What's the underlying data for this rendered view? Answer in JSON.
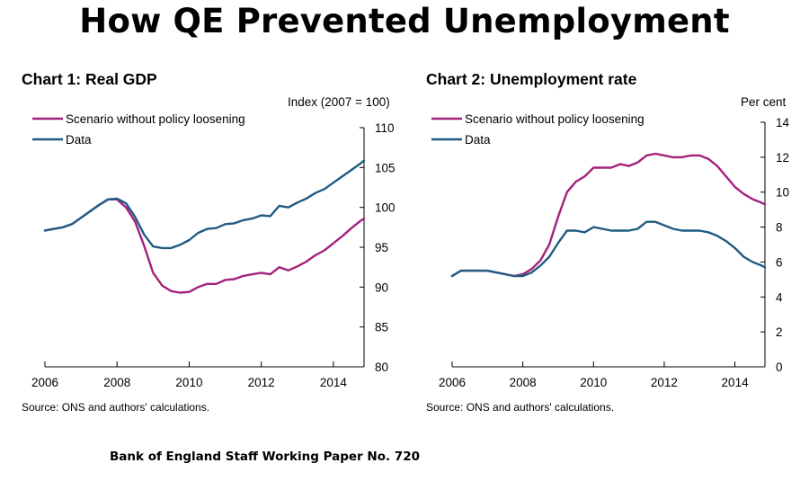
{
  "header": {
    "title": "How QE Prevented Unemployment"
  },
  "footer": {
    "text": "Bank of England Staff Working Paper No. 720"
  },
  "colors": {
    "scenario": "#a3217d",
    "data": "#1f5b82",
    "axis": "#000000"
  },
  "chart_data": [
    {
      "type": "line",
      "title": "Chart 1: Real GDP",
      "ylabel": "Index (2007 = 100)",
      "source": "Source: ONS and authors' calculations.",
      "xlim": [
        2006,
        2014.85
      ],
      "ylim": [
        80,
        110
      ],
      "x_ticks": [
        2006,
        2008,
        2010,
        2012,
        2014
      ],
      "y_ticks": [
        80,
        85,
        90,
        95,
        100,
        105,
        110
      ],
      "y_axis_side": "right",
      "legend": "top-left",
      "series": [
        {
          "name": "Scenario without policy loosening",
          "color_key": "scenario",
          "x": [
            2006,
            2006.25,
            2006.5,
            2006.75,
            2007,
            2007.25,
            2007.5,
            2007.75,
            2008,
            2008.25,
            2008.5,
            2008.75,
            2009,
            2009.25,
            2009.5,
            2009.75,
            2010,
            2010.25,
            2010.5,
            2010.75,
            2011,
            2011.25,
            2011.5,
            2011.75,
            2012,
            2012.25,
            2012.5,
            2012.75,
            2013,
            2013.25,
            2013.5,
            2013.75,
            2014,
            2014.25,
            2014.5,
            2014.75,
            2014.85
          ],
          "y": [
            97.1,
            97.3,
            97.5,
            97.9,
            98.7,
            99.5,
            100.3,
            101.0,
            101.0,
            100.0,
            98.2,
            95.2,
            91.8,
            90.2,
            89.5,
            89.3,
            89.4,
            90.0,
            90.4,
            90.4,
            90.9,
            91.0,
            91.4,
            91.6,
            91.8,
            91.6,
            92.5,
            92.1,
            92.6,
            93.2,
            94.0,
            94.6,
            95.5,
            96.4,
            97.4,
            98.3,
            98.6
          ]
        },
        {
          "name": "Data",
          "color_key": "data",
          "x": [
            2006,
            2006.25,
            2006.5,
            2006.75,
            2007,
            2007.25,
            2007.5,
            2007.75,
            2008,
            2008.25,
            2008.5,
            2008.75,
            2009,
            2009.25,
            2009.5,
            2009.75,
            2010,
            2010.25,
            2010.5,
            2010.75,
            2011,
            2011.25,
            2011.5,
            2011.75,
            2012,
            2012.25,
            2012.5,
            2012.75,
            2013,
            2013.25,
            2013.5,
            2013.75,
            2014,
            2014.25,
            2014.5,
            2014.75,
            2014.85
          ],
          "y": [
            97.1,
            97.3,
            97.5,
            97.9,
            98.7,
            99.5,
            100.3,
            101.0,
            101.1,
            100.5,
            98.8,
            96.6,
            95.1,
            94.9,
            94.9,
            95.3,
            95.9,
            96.8,
            97.3,
            97.4,
            97.9,
            98.0,
            98.4,
            98.6,
            99.0,
            98.9,
            100.2,
            100.0,
            100.6,
            101.1,
            101.8,
            102.3,
            103.1,
            103.9,
            104.7,
            105.5,
            105.9
          ]
        }
      ]
    },
    {
      "type": "line",
      "title": "Chart 2: Unemployment rate",
      "ylabel": "Per cent",
      "source": "Source: ONS and authors' calculations.",
      "xlim": [
        2006,
        2014.85
      ],
      "ylim": [
        0,
        14
      ],
      "x_ticks": [
        2006,
        2008,
        2010,
        2012,
        2014
      ],
      "y_ticks": [
        0,
        2,
        4,
        6,
        8,
        10,
        12,
        14
      ],
      "y_axis_side": "right",
      "legend": "top-left",
      "series": [
        {
          "name": "Scenario without policy loosening",
          "color_key": "scenario",
          "x": [
            2006,
            2006.25,
            2006.5,
            2006.75,
            2007,
            2007.25,
            2007.5,
            2007.75,
            2008,
            2008.25,
            2008.5,
            2008.75,
            2009,
            2009.25,
            2009.5,
            2009.75,
            2010,
            2010.25,
            2010.5,
            2010.75,
            2011,
            2011.25,
            2011.5,
            2011.75,
            2012,
            2012.25,
            2012.5,
            2012.75,
            2013,
            2013.25,
            2013.5,
            2013.75,
            2014,
            2014.25,
            2014.5,
            2014.75,
            2014.85
          ],
          "y": [
            5.2,
            5.5,
            5.5,
            5.5,
            5.5,
            5.4,
            5.3,
            5.2,
            5.3,
            5.6,
            6.1,
            7.0,
            8.6,
            10.0,
            10.6,
            10.9,
            11.4,
            11.4,
            11.4,
            11.6,
            11.5,
            11.7,
            12.1,
            12.2,
            12.1,
            12.0,
            12.0,
            12.1,
            12.1,
            11.9,
            11.5,
            10.9,
            10.3,
            9.9,
            9.6,
            9.4,
            9.3
          ]
        },
        {
          "name": "Data",
          "color_key": "data",
          "x": [
            2006,
            2006.25,
            2006.5,
            2006.75,
            2007,
            2007.25,
            2007.5,
            2007.75,
            2008,
            2008.25,
            2008.5,
            2008.75,
            2009,
            2009.25,
            2009.5,
            2009.75,
            2010,
            2010.25,
            2010.5,
            2010.75,
            2011,
            2011.25,
            2011.5,
            2011.75,
            2012,
            2012.25,
            2012.5,
            2012.75,
            2013,
            2013.25,
            2013.5,
            2013.75,
            2014,
            2014.25,
            2014.5,
            2014.75,
            2014.85
          ],
          "y": [
            5.2,
            5.5,
            5.5,
            5.5,
            5.5,
            5.4,
            5.3,
            5.2,
            5.2,
            5.4,
            5.8,
            6.3,
            7.1,
            7.8,
            7.8,
            7.7,
            8.0,
            7.9,
            7.8,
            7.8,
            7.8,
            7.9,
            8.3,
            8.3,
            8.1,
            7.9,
            7.8,
            7.8,
            7.8,
            7.7,
            7.5,
            7.2,
            6.8,
            6.3,
            6.0,
            5.8,
            5.7
          ]
        }
      ]
    }
  ]
}
